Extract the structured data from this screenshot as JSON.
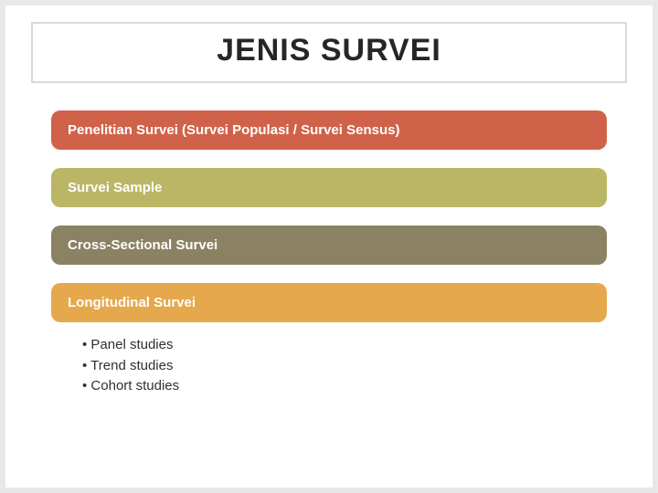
{
  "title": "JENIS SURVEI",
  "bars": [
    {
      "label": "Penelitian Survei (Survei Populasi / Survei Sensus)",
      "color": "#d1624a"
    },
    {
      "label": "Survei Sample",
      "color": "#bab665"
    },
    {
      "label": "Cross-Sectional Survei",
      "color": "#8a8263"
    },
    {
      "label": "Longitudinal Survei",
      "color": "#e6a84c"
    }
  ],
  "sublist": [
    "Panel studies",
    "Trend studies",
    "Cohort studies"
  ],
  "style": {
    "title_fontsize": 34,
    "bar_fontsize": 15,
    "bar_radius": 10,
    "background": "#ffffff",
    "page_bg": "#e8e8e8",
    "title_border": "#d9d9d9"
  }
}
